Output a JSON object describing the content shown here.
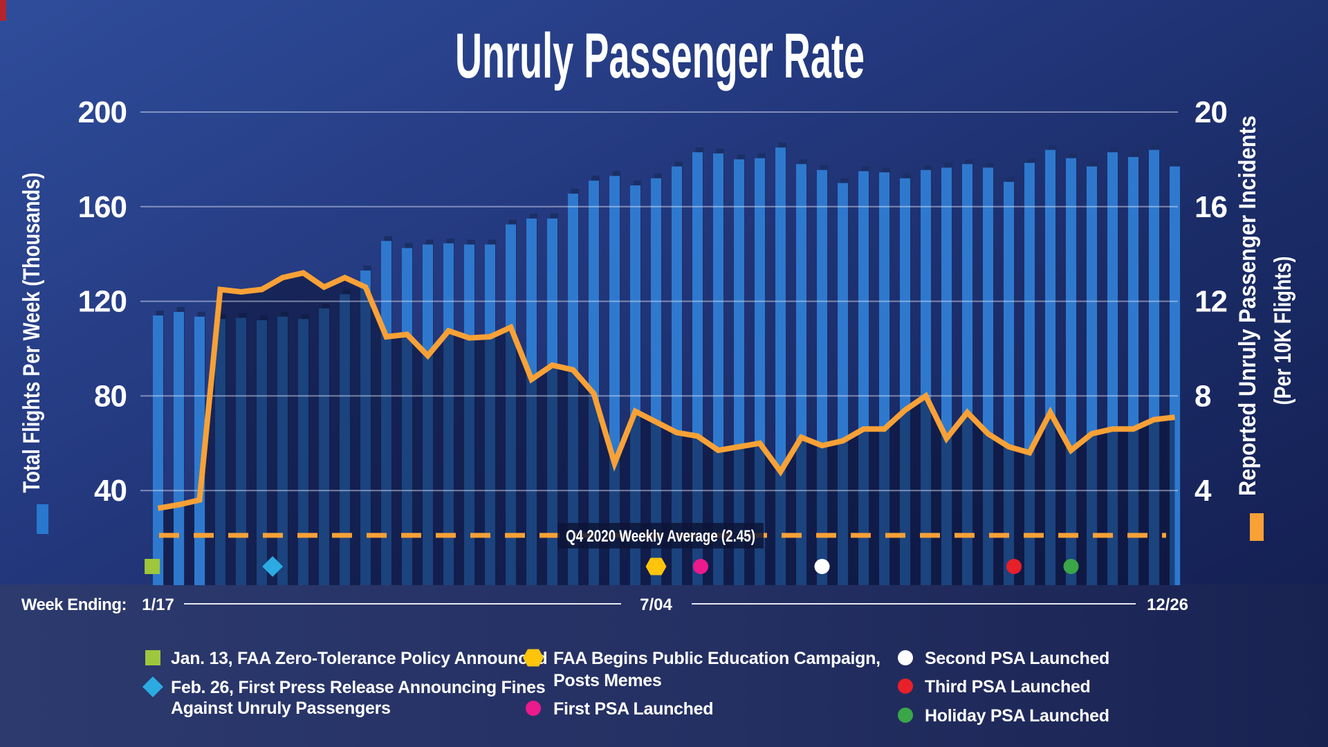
{
  "title": "Unruly Passenger Rate",
  "axes": {
    "left": {
      "title": "Total Flights Per Week (Thousands)",
      "ticks": [
        40,
        80,
        120,
        160,
        200
      ],
      "range": [
        0,
        200
      ]
    },
    "right": {
      "title_line1": "Reported Unruly Passenger Incidents",
      "title_line2": "(Per 10K Flights)",
      "ticks": [
        4,
        8,
        12,
        16,
        20
      ],
      "range": [
        0,
        20
      ]
    },
    "x": {
      "label": "Week Ending:",
      "week_labels": [
        "1/17",
        "7/04",
        "12/26"
      ]
    }
  },
  "avg_line": {
    "label": "Q4 2020 Weekly Average (2.45)",
    "value": 2.45
  },
  "colors": {
    "bar_face": "#2e79ce",
    "bar_back": "#1b2f66",
    "area": "rgba(8,14,45,0.5)",
    "line": "#f8a136",
    "grid": "rgba(220,225,245,0.5)",
    "green_square": "#9ec73d",
    "cyan_diamond": "#2cabe2",
    "yellow_hexagon": "#ffc40c",
    "magenta_circle": "#ec1a8c",
    "white_circle": "#ffffff",
    "red_circle": "#e8202a",
    "green_circle": "#3aa648"
  },
  "chart_data": {
    "type": "combo",
    "x_unit": "week_index",
    "weeks": 50,
    "series": [
      {
        "name": "Total Flights Per Week (Thousands)",
        "type": "bar",
        "axis": "left",
        "values": [
          114,
          115.5,
          113.5,
          112.5,
          113,
          112,
          113.5,
          112.5,
          117,
          123,
          133,
          145.5,
          142.5,
          144,
          144.5,
          144,
          144,
          152.5,
          155,
          155,
          165.5,
          171,
          173,
          169,
          172,
          177,
          183,
          182.5,
          180,
          180.5,
          185,
          178,
          175.5,
          170,
          175,
          174.5,
          172,
          175.5,
          176.5,
          178,
          176.5,
          170.5,
          178.5,
          184,
          180.5,
          177,
          183,
          181,
          184,
          177
        ]
      },
      {
        "name": "Reported Unruly Passenger Incidents (Per 10K Flights)",
        "type": "line",
        "axis": "right",
        "values": [
          3.25,
          3.4,
          3.6,
          12.5,
          12.4,
          12.5,
          13.0,
          13.2,
          12.6,
          13.0,
          12.6,
          10.5,
          10.6,
          9.7,
          10.75,
          10.45,
          10.5,
          10.9,
          8.7,
          9.3,
          9.1,
          8.1,
          5.15,
          7.35,
          6.9,
          6.45,
          6.3,
          5.7,
          5.85,
          6.0,
          4.8,
          6.25,
          5.9,
          6.1,
          6.6,
          6.6,
          7.4,
          8.0,
          6.2,
          7.3,
          6.4,
          5.85,
          5.6,
          7.3,
          5.7,
          6.4,
          6.6,
          6.6,
          7.0,
          7.1
        ]
      }
    ],
    "events": [
      {
        "shape": "square",
        "color": "#9ec73d",
        "week": 0.72,
        "label": "Jan. 13, FAA Zero-Tolerance Policy Announced"
      },
      {
        "shape": "diamond",
        "color": "#2cabe2",
        "week": 6.52,
        "label": "Feb. 26, First Press Release Announcing Fines Against Unruly Passengers"
      },
      {
        "shape": "hexagon",
        "color": "#ffc40c",
        "week": 25.0,
        "label": "FAA Begins Public Education Campaign, Posts Memes"
      },
      {
        "shape": "circle",
        "color": "#ec1a8c",
        "week": 27.15,
        "label": "First PSA Launched"
      },
      {
        "shape": "circle",
        "color": "#ffffff",
        "week": 33.0,
        "label": "Second PSA Launched"
      },
      {
        "shape": "circle",
        "color": "#e8202a",
        "week": 42.25,
        "label": "Third PSA Launched"
      },
      {
        "shape": "circle",
        "color": "#3aa648",
        "week": 45.0,
        "label": "Holiday PSA Launched"
      }
    ]
  },
  "legend": {
    "columns": [
      {
        "items": [
          {
            "shape": "square",
            "color": "#9ec73d",
            "lines": [
              "Jan. 13, FAA Zero-Tolerance Policy Announced"
            ]
          },
          {
            "shape": "diamond",
            "color": "#2cabe2",
            "lines": [
              "Feb. 26, First Press Release Announcing Fines",
              "Against Unruly Passengers"
            ]
          }
        ]
      },
      {
        "items": [
          {
            "shape": "hexagon",
            "color": "#ffc40c",
            "lines": [
              "FAA Begins Public Education Campaign,",
              "Posts Memes"
            ]
          },
          {
            "shape": "circle",
            "color": "#ec1a8c",
            "lines": [
              "First PSA Launched"
            ]
          }
        ]
      },
      {
        "items": [
          {
            "shape": "circle",
            "color": "#ffffff",
            "lines": [
              "Second PSA Launched"
            ]
          },
          {
            "shape": "circle",
            "color": "#e8202a",
            "lines": [
              "Third PSA Launched"
            ]
          },
          {
            "shape": "circle",
            "color": "#3aa648",
            "lines": [
              "Holiday PSA Launched"
            ]
          }
        ]
      }
    ]
  }
}
